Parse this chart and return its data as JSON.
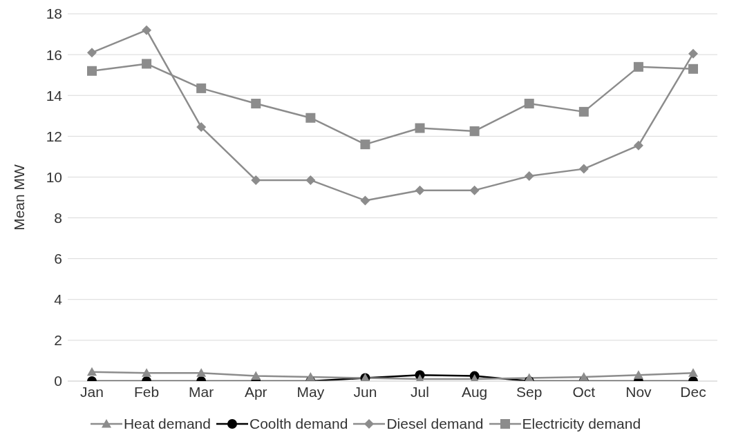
{
  "chart_data": {
    "type": "line",
    "ylabel": "Mean MW",
    "categories": [
      "Jan",
      "Feb",
      "Mar",
      "Apr",
      "May",
      "Jun",
      "Jul",
      "Aug",
      "Sep",
      "Oct",
      "Nov",
      "Dec"
    ],
    "series": [
      {
        "name": "Heat demand",
        "color": "#8c8c8c",
        "marker": "triangle",
        "values": [
          0.45,
          0.4,
          0.4,
          0.25,
          0.2,
          0.15,
          0.1,
          0.1,
          0.15,
          0.2,
          0.3,
          0.4
        ]
      },
      {
        "name": "Coolth demand",
        "color": "#000000",
        "marker": "circle",
        "values": [
          0,
          0,
          0,
          0,
          0,
          0.15,
          0.3,
          0.25,
          0,
          0,
          0,
          0
        ]
      },
      {
        "name": "Diesel demand",
        "color": "#8c8c8c",
        "marker": "diamond",
        "values": [
          16.1,
          17.2,
          12.45,
          9.85,
          9.85,
          8.85,
          9.35,
          9.35,
          10.05,
          10.4,
          11.55,
          16.05
        ]
      },
      {
        "name": "Electricity demand",
        "color": "#8c8c8c",
        "marker": "square",
        "values": [
          15.2,
          15.55,
          14.35,
          13.6,
          12.9,
          11.6,
          12.4,
          12.25,
          13.6,
          13.2,
          15.4,
          15.3
        ]
      }
    ],
    "ylim": [
      0,
      18
    ],
    "yticks": [
      0,
      2,
      4,
      6,
      8,
      10,
      12,
      14,
      16,
      18
    ],
    "grid": "y",
    "legend": "bottom",
    "line_style": "solid"
  }
}
